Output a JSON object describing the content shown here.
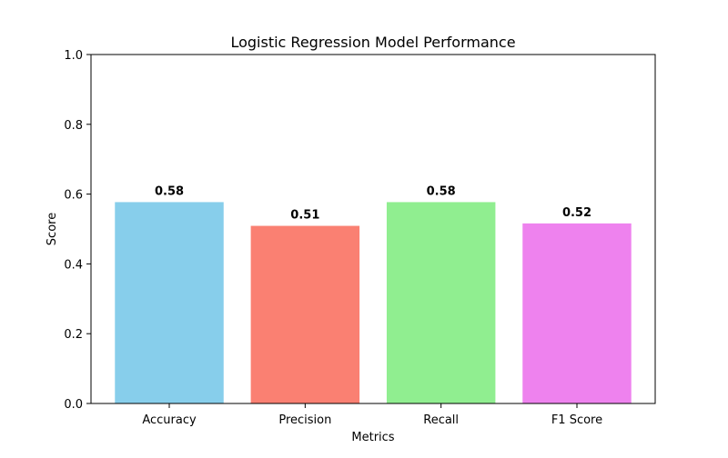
{
  "chart_data": {
    "type": "bar",
    "title": "Logistic Regression Model Performance",
    "xlabel": "Metrics",
    "ylabel": "Score",
    "ylim": [
      0,
      1.0
    ],
    "yticks": [
      "0.0",
      "0.2",
      "0.4",
      "0.6",
      "0.8",
      "1.0"
    ],
    "categories": [
      "Accuracy",
      "Precision",
      "Recall",
      "F1 Score"
    ],
    "values": [
      0.577,
      0.509,
      0.577,
      0.516
    ],
    "value_labels": [
      "0.58",
      "0.51",
      "0.58",
      "0.52"
    ],
    "colors": [
      "#87ceeb",
      "#fa8072",
      "#90ee90",
      "#ee82ee"
    ],
    "grid": false,
    "legend": "none"
  }
}
